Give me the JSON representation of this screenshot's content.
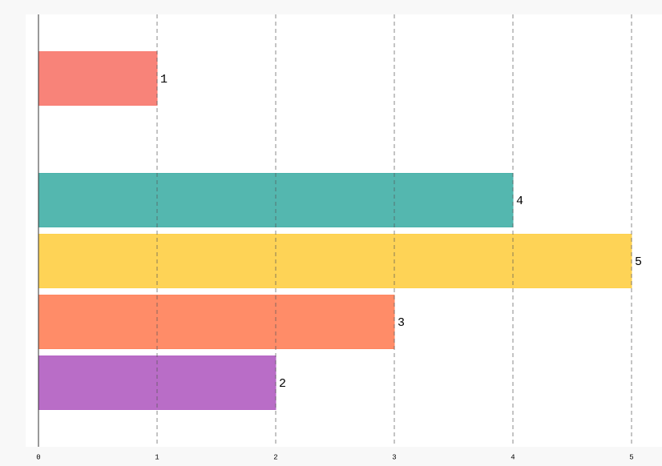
{
  "chart_data": {
    "type": "bar",
    "orientation": "horizontal",
    "categories": [
      null,
      null,
      null,
      null,
      null,
      null
    ],
    "values": [
      1,
      null,
      4,
      5,
      3,
      2
    ],
    "colors": [
      "#f87c72",
      null,
      "#4bb3ab",
      "#fed14d",
      "#ff8660",
      "#b565c4"
    ],
    "xlim": [
      0,
      5
    ],
    "xticks": [
      0,
      1,
      2,
      3,
      4,
      5
    ],
    "grid": true
  }
}
